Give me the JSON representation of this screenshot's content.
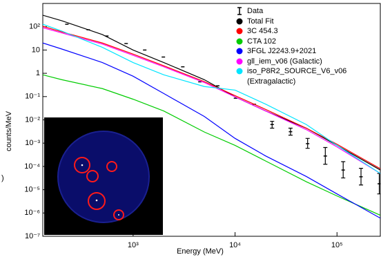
{
  "chart_data": {
    "type": "line",
    "xlabel": "Energy (MeV)",
    "ylabel": "counts/MeV",
    "edge_fragment": ")",
    "xscale": "log",
    "yscale": "log",
    "xlim": [
      130,
      266000
    ],
    "ylim": [
      1e-07,
      1000
    ],
    "xticks": [
      {
        "value": 1000,
        "label": "10³"
      },
      {
        "value": 10000,
        "label": "10⁴"
      },
      {
        "value": 100000,
        "label": "10⁵"
      }
    ],
    "yticks": [
      {
        "value": 1e-07,
        "label": "10⁻⁷"
      },
      {
        "value": 1e-06,
        "label": "10⁻⁶"
      },
      {
        "value": 1e-05,
        "label": "10⁻⁵"
      },
      {
        "value": 0.0001,
        "label": "10⁻⁴"
      },
      {
        "value": 0.001,
        "label": "10⁻³"
      },
      {
        "value": 0.01,
        "label": "10⁻²"
      },
      {
        "value": 0.1,
        "label": "10⁻¹"
      },
      1,
      10,
      {
        "value": 100,
        "label": "10²"
      }
    ],
    "x": [
      130,
      200,
      500,
      1000,
      2000,
      5000,
      10000,
      20000,
      50000,
      100000,
      266000
    ],
    "series": [
      {
        "name": "Data",
        "color": "#000000",
        "marker": "errorbar",
        "x": [
          224,
          363,
          552,
          854,
          1300,
          1980,
          3070,
          4520,
          6760,
          10100,
          15400,
          23100,
          35000,
          51500,
          76800,
          115000,
          172000,
          260000
        ],
        "values": [
          128,
          74,
          40,
          19,
          10,
          5,
          1.9,
          0.43,
          0.29,
          0.085,
          0.047,
          0.0063,
          0.0031,
          0.00095,
          0.00028,
          7e-05,
          3.6e-05,
          1.8e-05
        ],
        "lower": [
          null,
          null,
          null,
          null,
          null,
          null,
          null,
          null,
          null,
          null,
          null,
          0.0044,
          0.0022,
          0.0006,
          0.000124,
          3.2e-05,
          1.6e-05,
          6.6e-06
        ],
        "upper": [
          null,
          null,
          null,
          null,
          null,
          null,
          null,
          null,
          null,
          null,
          null,
          0.0087,
          0.0044,
          0.0016,
          0.00065,
          0.00016,
          8.3e-05,
          5e-05
        ]
      },
      {
        "name": "Total Fit",
        "color": "#000000",
        "values": [
          312,
          180,
          46,
          10,
          2.9,
          0.53,
          0.097,
          0.024,
          0.0044,
          0.0008,
          7e-05
        ]
      },
      {
        "name": "3C 454.3",
        "color": "#ff0000",
        "values": [
          104,
          60,
          20,
          6.7,
          2.1,
          0.44,
          0.11,
          0.028,
          0.0044,
          0.0009,
          8e-05
        ]
      },
      {
        "name": "CTA 102",
        "color": "#00cc00",
        "values": [
          0.86,
          0.53,
          0.22,
          0.077,
          0.024,
          0.003,
          0.0008,
          0.00017,
          2.2e-05,
          5.4e-06,
          8e-07
        ]
      },
      {
        "name": "3FGL J2243.9+2021",
        "color": "#0000ff",
        "values": [
          20,
          11,
          2.9,
          0.75,
          0.135,
          0.014,
          0.0016,
          0.00028,
          3.7e-05,
          6.6e-06,
          6e-07
        ]
      },
      {
        "name": "gll_iem_v06 (Galactic)",
        "color": "#ff00ff",
        "values": [
          91,
          54,
          18,
          5.9,
          1.9,
          0.4,
          0.097,
          0.024,
          0.0038,
          0.00069,
          5e-05
        ]
      },
      {
        "name": "iso_P8R2_SOURCE_V6_v06 (Extragalactic)",
        "color": "#00e5ff",
        "values": [
          128,
          65,
          13,
          2.9,
          0.86,
          0.27,
          0.19,
          0.047,
          0.0063,
          0.0008,
          5e-05
        ]
      }
    ]
  }
}
